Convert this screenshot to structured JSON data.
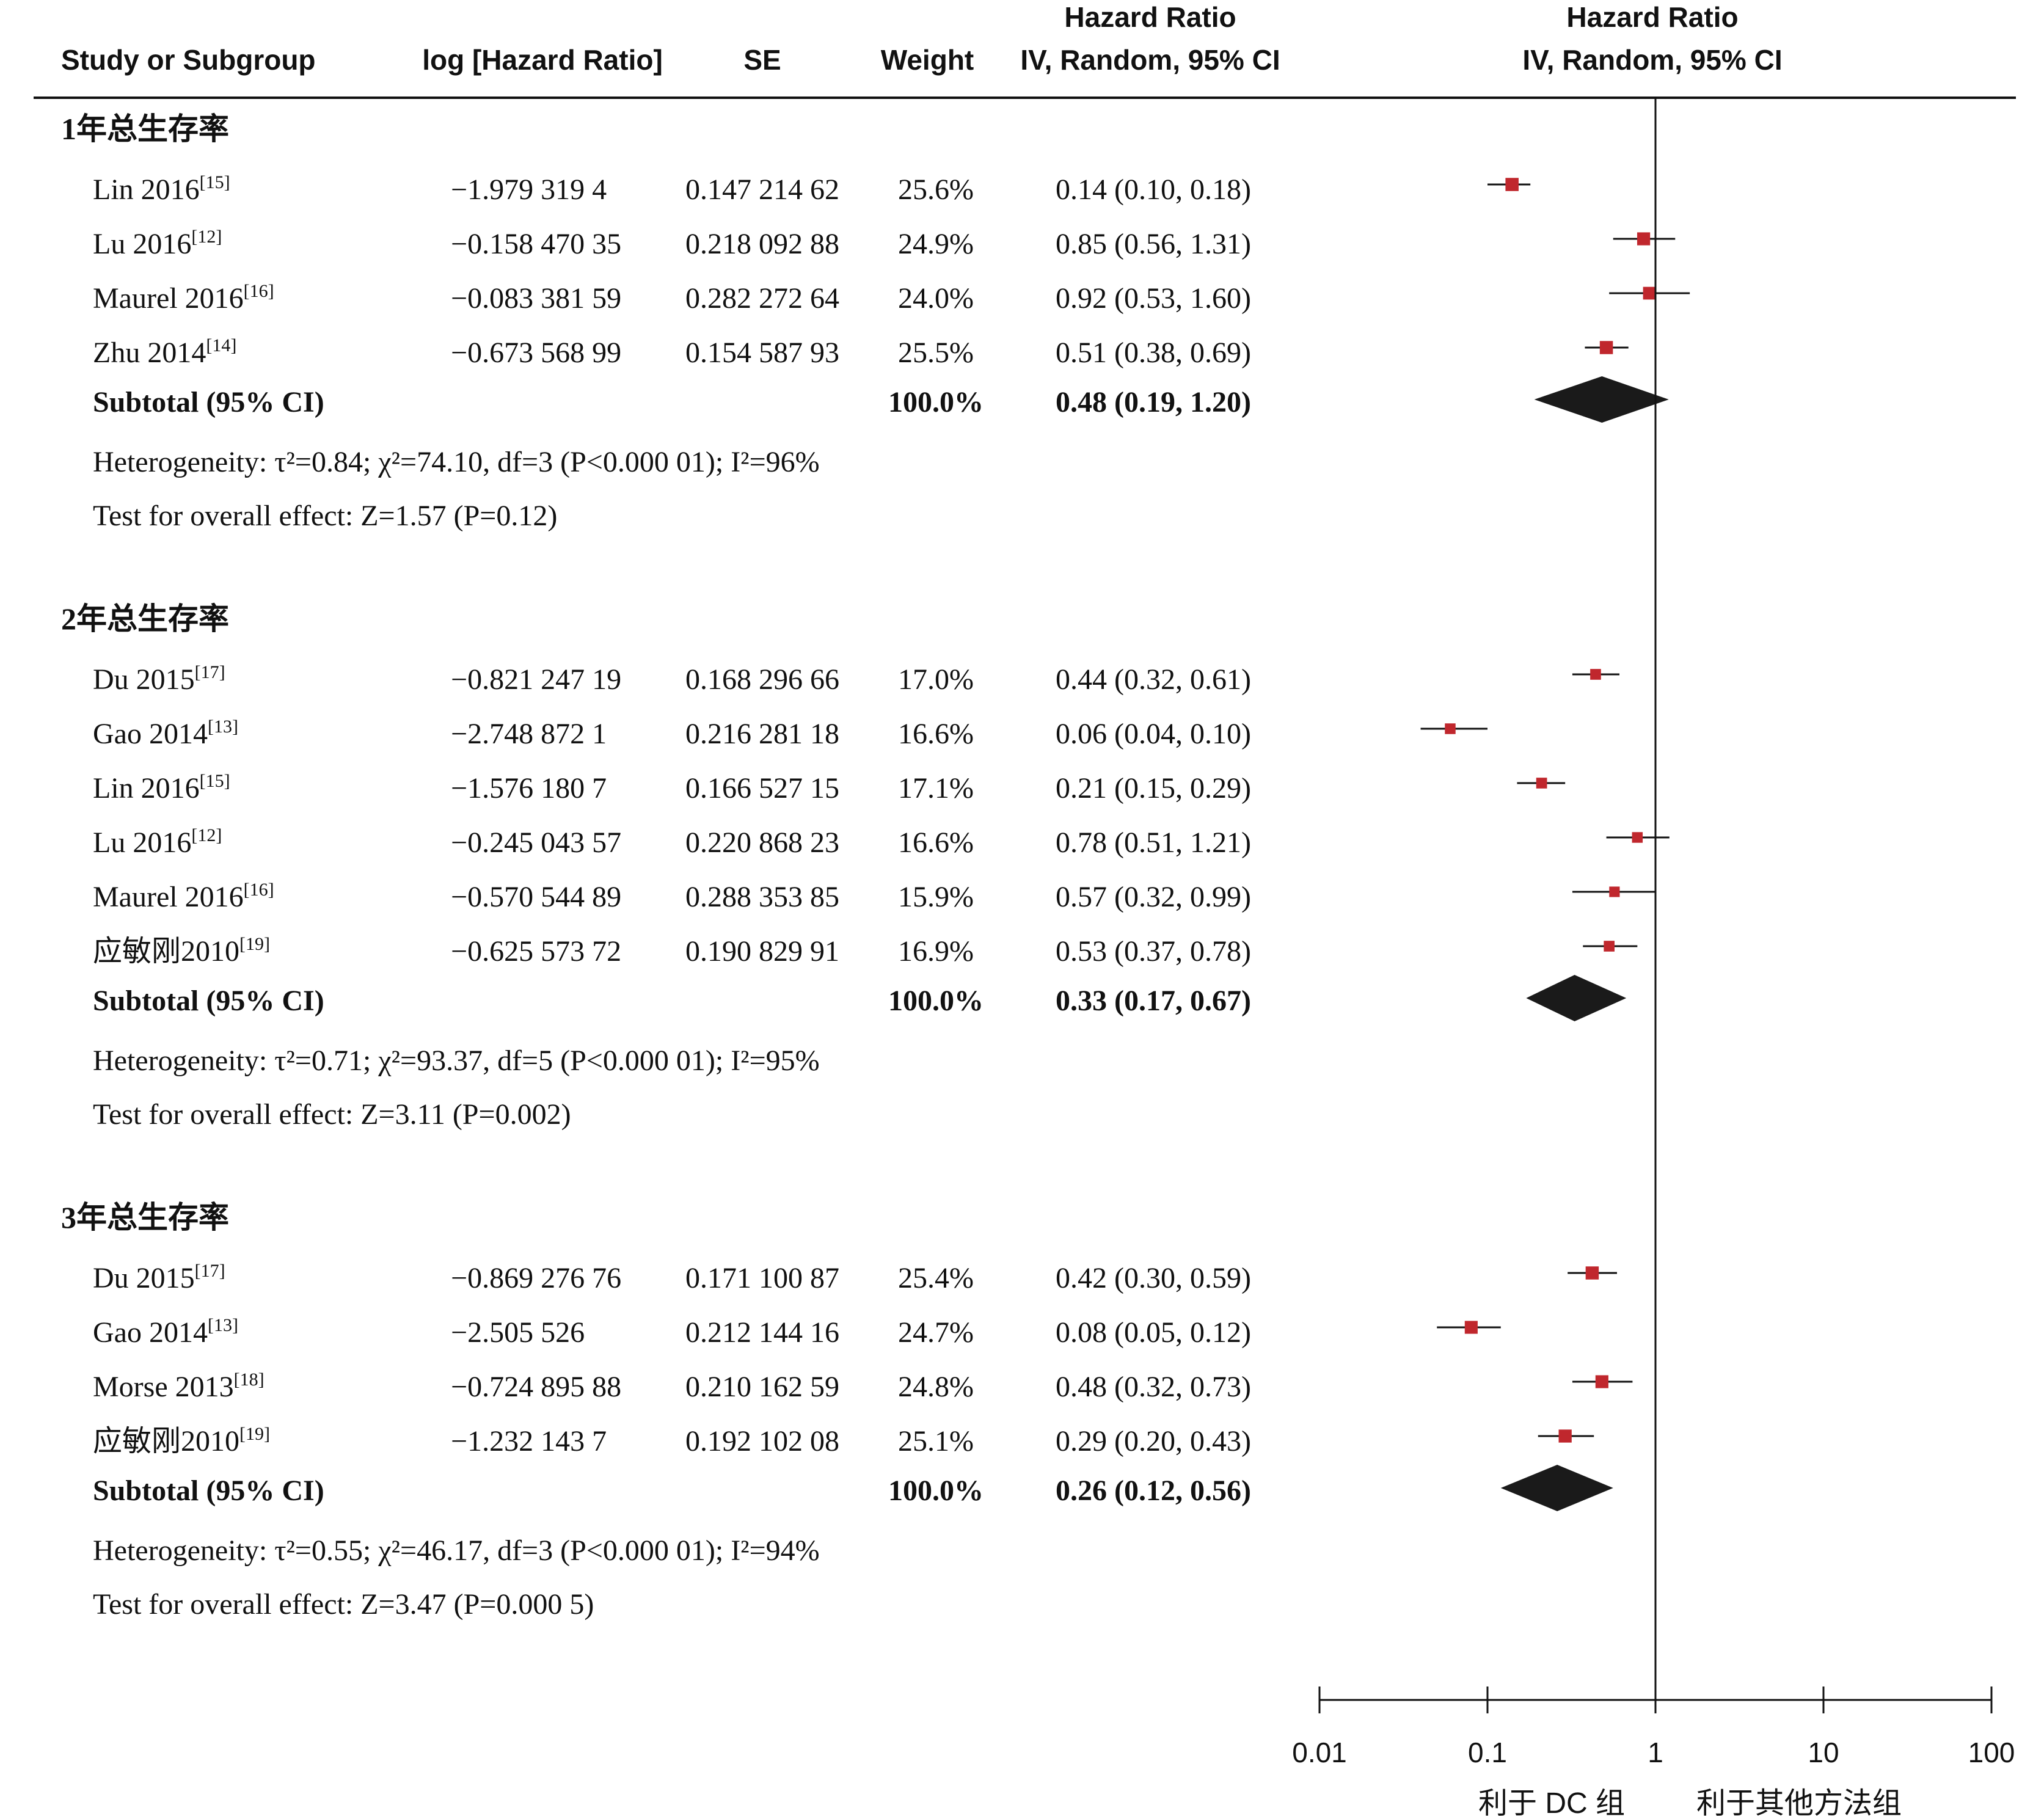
{
  "headers": {
    "study": "Study or Subgroup",
    "loghr": "log [Hazard Ratio]",
    "se": "SE",
    "weight": "Weight",
    "hr_line1": "Hazard Ratio",
    "hr_line2": "IV, Random, 95% CI",
    "plot_line1": "Hazard Ratio",
    "plot_line2": "IV, Random, 95% CI"
  },
  "chart_data": {
    "type": "forest",
    "x_scale": "log",
    "x_ticks": [
      0.01,
      0.1,
      1,
      10,
      100
    ],
    "x_tick_labels": [
      "0.01",
      "0.1",
      "1",
      "10",
      "100"
    ],
    "xlim": [
      0.01,
      100
    ],
    "null_line": 1,
    "favours_left": "利于 DC 组",
    "favours_right": "利于其他方法组",
    "marker_color": "#c0272d",
    "diamond_color": "#1a1a1a",
    "subgroups": [
      {
        "title": "1年总生存率",
        "studies": [
          {
            "name": "Lin 2016",
            "ref": "[15]",
            "loghr": "−1.979 319 4",
            "se": "0.147 214 62",
            "weight": "25.6%",
            "hr_text": "0.14 (0.10, 0.18)",
            "hr": 0.14,
            "lo": 0.1,
            "hi": 0.18,
            "w": 25.6
          },
          {
            "name": "Lu 2016",
            "ref": "[12]",
            "loghr": "−0.158 470 35",
            "se": "0.218 092 88",
            "weight": "24.9%",
            "hr_text": "0.85 (0.56, 1.31)",
            "hr": 0.85,
            "lo": 0.56,
            "hi": 1.31,
            "w": 24.9
          },
          {
            "name": "Maurel 2016",
            "ref": "[16]",
            "loghr": "−0.083 381 59",
            "se": "0.282 272 64",
            "weight": "24.0%",
            "hr_text": "0.92 (0.53, 1.60)",
            "hr": 0.92,
            "lo": 0.53,
            "hi": 1.6,
            "w": 24.0
          },
          {
            "name": "Zhu 2014",
            "ref": "[14]",
            "loghr": "−0.673 568 99",
            "se": "0.154 587 93",
            "weight": "25.5%",
            "hr_text": "0.51 (0.38, 0.69)",
            "hr": 0.51,
            "lo": 0.38,
            "hi": 0.69,
            "w": 25.5
          }
        ],
        "subtotal": {
          "label": "Subtotal (95% CI)",
          "weight": "100.0%",
          "hr_text": "0.48 (0.19, 1.20)",
          "hr": 0.48,
          "lo": 0.19,
          "hi": 1.2
        },
        "heterogeneity": "Heterogeneity: τ²=0.84; χ²=74.10, df=3 (P<0.000 01); I²=96%",
        "overall": "Test for overall effect: Z=1.57 (P=0.12)"
      },
      {
        "title": "2年总生存率",
        "studies": [
          {
            "name": "Du 2015",
            "ref": "[17]",
            "loghr": "−0.821 247 19",
            "se": "0.168 296 66",
            "weight": "17.0%",
            "hr_text": "0.44 (0.32, 0.61)",
            "hr": 0.44,
            "lo": 0.32,
            "hi": 0.61,
            "w": 17.0
          },
          {
            "name": "Gao 2014",
            "ref": "[13]",
            "loghr": "−2.748 872 1",
            "se": "0.216 281 18",
            "weight": "16.6%",
            "hr_text": "0.06 (0.04, 0.10)",
            "hr": 0.06,
            "lo": 0.04,
            "hi": 0.1,
            "w": 16.6
          },
          {
            "name": "Lin 2016",
            "ref": "[15]",
            "loghr": "−1.576 180 7",
            "se": "0.166 527 15",
            "weight": "17.1%",
            "hr_text": "0.21 (0.15, 0.29)",
            "hr": 0.21,
            "lo": 0.15,
            "hi": 0.29,
            "w": 17.1
          },
          {
            "name": "Lu 2016",
            "ref": "[12]",
            "loghr": "−0.245 043 57",
            "se": "0.220 868 23",
            "weight": "16.6%",
            "hr_text": "0.78 (0.51, 1.21)",
            "hr": 0.78,
            "lo": 0.51,
            "hi": 1.21,
            "w": 16.6
          },
          {
            "name": "Maurel 2016",
            "ref": "[16]",
            "loghr": "−0.570 544 89",
            "se": "0.288 353 85",
            "weight": "15.9%",
            "hr_text": "0.57 (0.32, 0.99)",
            "hr": 0.57,
            "lo": 0.32,
            "hi": 0.99,
            "w": 15.9
          },
          {
            "name": "应敏刚2010",
            "ref": "[19]",
            "loghr": "−0.625 573 72",
            "se": "0.190 829 91",
            "weight": "16.9%",
            "hr_text": "0.53 (0.37, 0.78)",
            "hr": 0.53,
            "lo": 0.37,
            "hi": 0.78,
            "w": 16.9
          }
        ],
        "subtotal": {
          "label": "Subtotal (95% CI)",
          "weight": "100.0%",
          "hr_text": "0.33 (0.17, 0.67)",
          "hr": 0.33,
          "lo": 0.17,
          "hi": 0.67
        },
        "heterogeneity": "Heterogeneity: τ²=0.71; χ²=93.37, df=5 (P<0.000 01); I²=95%",
        "overall": "Test for overall effect: Z=3.11 (P=0.002)"
      },
      {
        "title": "3年总生存率",
        "studies": [
          {
            "name": "Du 2015",
            "ref": "[17]",
            "loghr": "−0.869 276 76",
            "se": "0.171 100 87",
            "weight": "25.4%",
            "hr_text": "0.42 (0.30, 0.59)",
            "hr": 0.42,
            "lo": 0.3,
            "hi": 0.59,
            "w": 25.4
          },
          {
            "name": "Gao 2014",
            "ref": "[13]",
            "loghr": "−2.505 526",
            "se": "0.212 144 16",
            "weight": "24.7%",
            "hr_text": "0.08 (0.05, 0.12)",
            "hr": 0.08,
            "lo": 0.05,
            "hi": 0.12,
            "w": 24.7
          },
          {
            "name": "Morse 2013",
            "ref": "[18]",
            "loghr": "−0.724 895 88",
            "se": "0.210 162 59",
            "weight": "24.8%",
            "hr_text": "0.48 (0.32, 0.73)",
            "hr": 0.48,
            "lo": 0.32,
            "hi": 0.73,
            "w": 24.8
          },
          {
            "name": "应敏刚2010",
            "ref": "[19]",
            "loghr": "−1.232 143 7",
            "se": "0.192 102 08",
            "weight": "25.1%",
            "hr_text": "0.29 (0.20, 0.43)",
            "hr": 0.29,
            "lo": 0.2,
            "hi": 0.43,
            "w": 25.1
          }
        ],
        "subtotal": {
          "label": "Subtotal (95% CI)",
          "weight": "100.0%",
          "hr_text": "0.26 (0.12, 0.56)",
          "hr": 0.26,
          "lo": 0.12,
          "hi": 0.56
        },
        "heterogeneity": "Heterogeneity: τ²=0.55; χ²=46.17, df=3 (P<0.000 01); I²=94%",
        "overall": "Test for overall effect: Z=3.47 (P=0.000 5)"
      }
    ]
  }
}
